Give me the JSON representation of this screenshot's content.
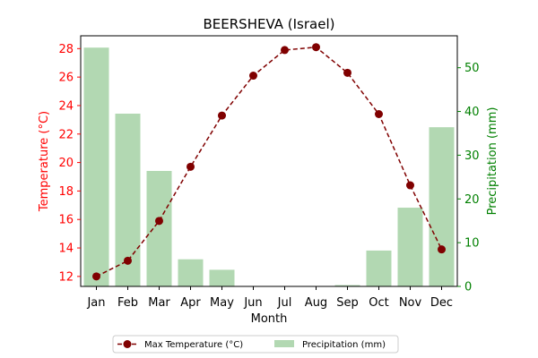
{
  "chart_data": {
    "type": "bar+line",
    "title": "BEERSHEVA (Israel)",
    "xlabel": "Month",
    "categories": [
      "Jan",
      "Feb",
      "Mar",
      "Apr",
      "May",
      "Jun",
      "Jul",
      "Aug",
      "Sep",
      "Oct",
      "Nov",
      "Dec"
    ],
    "series": [
      {
        "name": "Max Temperature (°C)",
        "type": "line",
        "axis": "left",
        "color": "#800000",
        "line_style": "dashed",
        "marker": "circle",
        "values": [
          12.0,
          13.1,
          15.9,
          19.7,
          23.3,
          26.1,
          27.9,
          28.1,
          26.3,
          23.4,
          18.4,
          13.9
        ]
      },
      {
        "name": "Precipitation (mm)",
        "type": "bar",
        "axis": "right",
        "color": "#b2d8b2",
        "values": [
          54.6,
          39.5,
          26.4,
          6.2,
          3.8,
          0,
          0,
          0,
          0.3,
          8.2,
          18.0,
          36.4
        ]
      }
    ],
    "left_axis": {
      "label": "Temperature (°C)",
      "color": "#ff0000",
      "ylim": [
        11.3,
        28.9
      ],
      "ticks": [
        12,
        14,
        16,
        18,
        20,
        22,
        24,
        26,
        28
      ]
    },
    "right_axis": {
      "label": "Precipitation (mm)",
      "color": "#008000",
      "ylim": [
        0,
        57.3
      ],
      "ticks": [
        0,
        10,
        20,
        30,
        40,
        50
      ]
    },
    "grid": false,
    "legend_position": "bottom-center"
  }
}
